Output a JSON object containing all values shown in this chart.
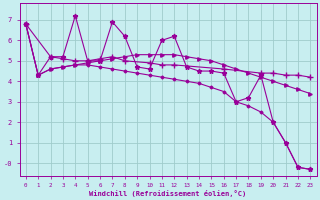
{
  "xlabel": "Windchill (Refroidissement éolien,°C)",
  "xlim": [
    -0.5,
    23.5
  ],
  "ylim": [
    -0.6,
    7.8
  ],
  "yticks": [
    0,
    1,
    2,
    3,
    4,
    5,
    6,
    7
  ],
  "ytick_labels": [
    "-0",
    "1",
    "2",
    "3",
    "4",
    "5",
    "6",
    "7"
  ],
  "xticks": [
    0,
    1,
    2,
    3,
    4,
    5,
    6,
    7,
    8,
    9,
    10,
    11,
    12,
    13,
    14,
    15,
    16,
    17,
    18,
    19,
    20,
    21,
    22,
    23
  ],
  "bg_color": "#c8eef0",
  "grid_color": "#a0cccc",
  "line_color": "#990099",
  "series": {
    "zigzag": {
      "x": [
        0,
        1,
        2,
        3,
        4,
        5,
        6,
        7,
        8,
        9,
        10,
        11,
        12,
        13,
        14,
        15,
        16,
        17,
        18,
        19,
        20,
        21,
        22,
        23
      ],
      "y": [
        6.8,
        4.3,
        5.2,
        5.2,
        7.2,
        5.0,
        5.0,
        6.9,
        6.2,
        4.7,
        4.6,
        6.0,
        6.2,
        4.7,
        4.5,
        4.5,
        4.4,
        3.0,
        3.2,
        4.3,
        2.0,
        1.0,
        -0.2,
        -0.3
      ],
      "marker": "*",
      "markersize": 3.5
    },
    "flat_upper": {
      "x": [
        0,
        2,
        3,
        4,
        5,
        6,
        7,
        8,
        10,
        11,
        12,
        16,
        19,
        20,
        21,
        22,
        23
      ],
      "y": [
        6.8,
        5.2,
        5.1,
        5.0,
        5.0,
        5.1,
        5.2,
        5.0,
        4.9,
        4.8,
        4.8,
        4.6,
        4.4,
        4.4,
        4.3,
        4.3,
        4.2
      ],
      "marker": "+",
      "markersize": 4.0
    },
    "rising": {
      "x": [
        0,
        1,
        2,
        3,
        4,
        5,
        6,
        7,
        8,
        9,
        10,
        11,
        12,
        13,
        14,
        15,
        16,
        17,
        18,
        19,
        20,
        21,
        22,
        23
      ],
      "y": [
        6.8,
        4.3,
        4.6,
        4.7,
        4.8,
        4.9,
        5.0,
        5.1,
        5.2,
        5.3,
        5.3,
        5.3,
        5.3,
        5.2,
        5.1,
        5.0,
        4.8,
        4.6,
        4.4,
        4.2,
        4.0,
        3.8,
        3.6,
        3.4
      ],
      "marker": ">",
      "markersize": 2.5
    },
    "diagonal": {
      "x": [
        0,
        1,
        2,
        3,
        4,
        5,
        6,
        7,
        8,
        9,
        10,
        11,
        12,
        13,
        14,
        15,
        16,
        17,
        18,
        19,
        20,
        21,
        22,
        23
      ],
      "y": [
        6.8,
        4.3,
        4.6,
        4.7,
        4.8,
        4.8,
        4.7,
        4.6,
        4.5,
        4.4,
        4.3,
        4.2,
        4.1,
        4.0,
        3.9,
        3.7,
        3.5,
        3.0,
        2.8,
        2.5,
        2.0,
        1.0,
        -0.2,
        -0.3
      ],
      "marker": "D",
      "markersize": 1.5
    }
  }
}
